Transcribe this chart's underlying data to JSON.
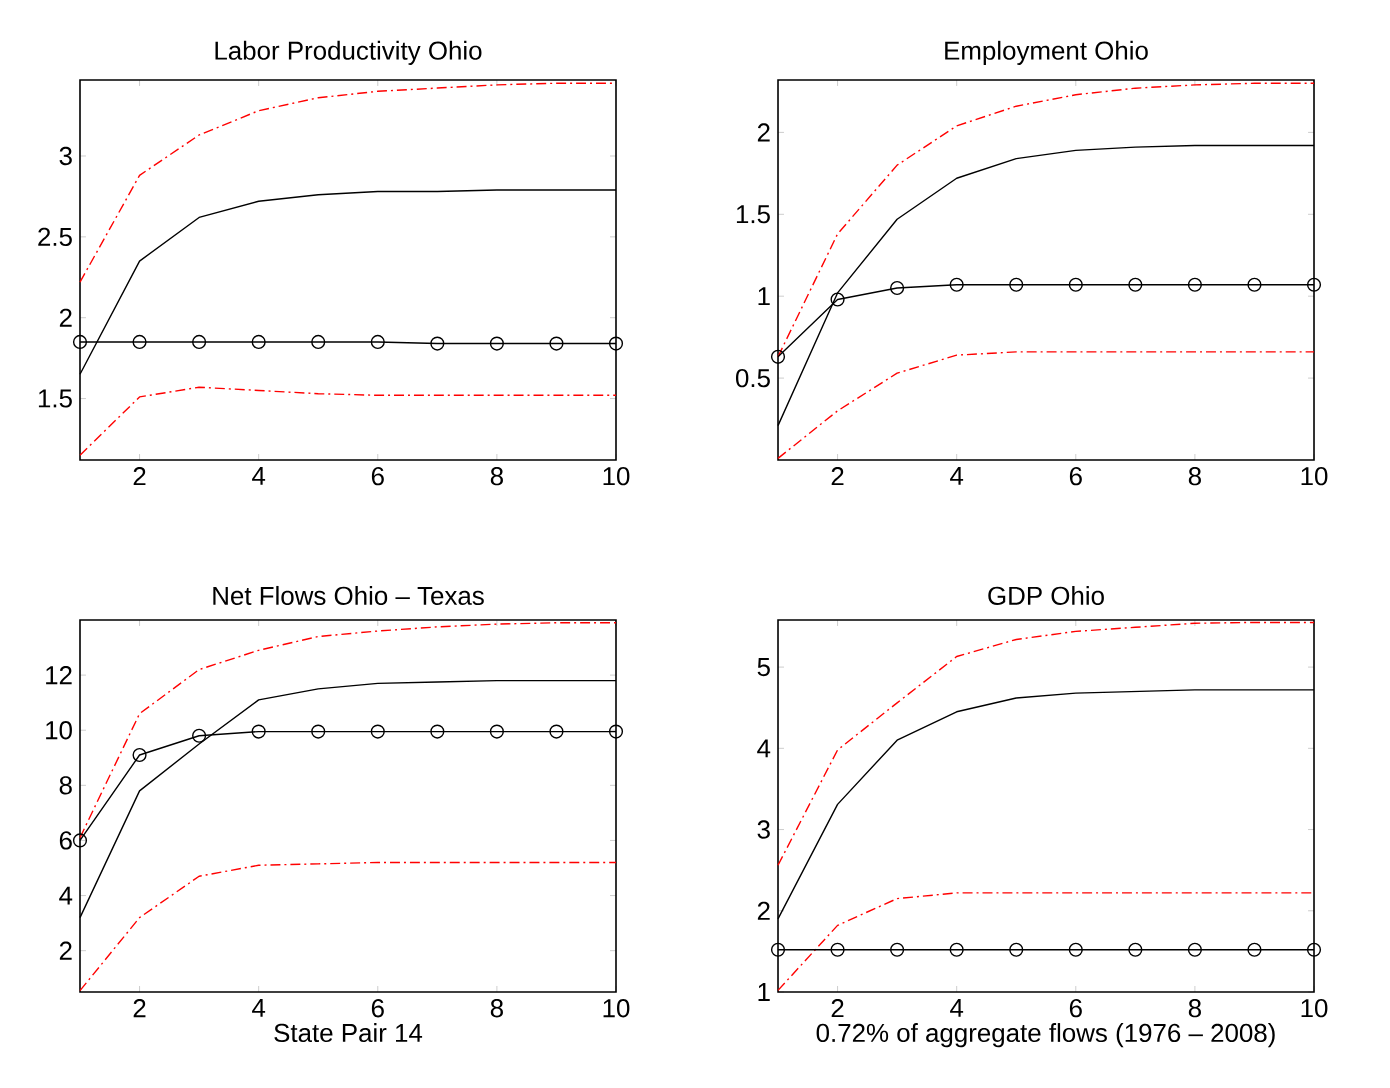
{
  "chart_data": [
    {
      "type": "line",
      "title": "Labor Productivity Ohio",
      "x": [
        1,
        2,
        3,
        4,
        5,
        6,
        7,
        8,
        9,
        10
      ],
      "xlim": [
        1,
        10
      ],
      "xticks": [
        2,
        4,
        6,
        8,
        10
      ],
      "ylim": [
        1.12,
        3.47
      ],
      "yticks": [
        1.5,
        2,
        2.5,
        3
      ],
      "grid": false,
      "legend": false,
      "series": [
        {
          "color": "#ff0000",
          "line_style": "dashed",
          "marker": "none",
          "values": [
            2.22,
            2.88,
            3.13,
            3.28,
            3.36,
            3.4,
            3.42,
            3.44,
            3.45,
            3.45
          ]
        },
        {
          "color": "#ff0000",
          "line_style": "dashed",
          "marker": "none",
          "values": [
            1.15,
            1.51,
            1.57,
            1.55,
            1.53,
            1.52,
            1.52,
            1.52,
            1.52,
            1.52
          ]
        },
        {
          "color": "#000000",
          "line_style": "solid",
          "marker": "none",
          "values": [
            1.65,
            2.35,
            2.62,
            2.72,
            2.76,
            2.78,
            2.78,
            2.79,
            2.79,
            2.79
          ]
        },
        {
          "color": "#000000",
          "line_style": "solid",
          "marker": "circle",
          "values": [
            1.85,
            1.85,
            1.85,
            1.85,
            1.85,
            1.85,
            1.84,
            1.84,
            1.84,
            1.84
          ]
        }
      ]
    },
    {
      "type": "line",
      "title": "Employment Ohio",
      "x": [
        1,
        2,
        3,
        4,
        5,
        6,
        7,
        8,
        9,
        10
      ],
      "xlim": [
        1,
        10
      ],
      "xticks": [
        2,
        4,
        6,
        8,
        10
      ],
      "ylim": [
        0,
        2.32
      ],
      "yticks": [
        0.5,
        1,
        1.5,
        2
      ],
      "grid": false,
      "legend": false,
      "series": [
        {
          "color": "#ff0000",
          "line_style": "dashed",
          "marker": "none",
          "values": [
            0.63,
            1.38,
            1.8,
            2.04,
            2.16,
            2.23,
            2.27,
            2.29,
            2.3,
            2.3
          ]
        },
        {
          "color": "#ff0000",
          "line_style": "dashed",
          "marker": "none",
          "values": [
            0.01,
            0.3,
            0.53,
            0.64,
            0.66,
            0.66,
            0.66,
            0.66,
            0.66,
            0.66
          ]
        },
        {
          "color": "#000000",
          "line_style": "solid",
          "marker": "none",
          "values": [
            0.21,
            1.02,
            1.47,
            1.72,
            1.84,
            1.89,
            1.91,
            1.92,
            1.92,
            1.92
          ]
        },
        {
          "color": "#000000",
          "line_style": "solid",
          "marker": "circle",
          "values": [
            0.63,
            0.98,
            1.05,
            1.07,
            1.07,
            1.07,
            1.07,
            1.07,
            1.07,
            1.07
          ]
        }
      ]
    },
    {
      "type": "line",
      "title": "Net Flows Ohio – Texas",
      "xlabel": "State Pair 14",
      "x": [
        1,
        2,
        3,
        4,
        5,
        6,
        7,
        8,
        9,
        10
      ],
      "xlim": [
        1,
        10
      ],
      "xticks": [
        2,
        4,
        6,
        8,
        10
      ],
      "ylim": [
        0.5,
        14
      ],
      "yticks": [
        2,
        4,
        6,
        8,
        10,
        12
      ],
      "grid": false,
      "legend": false,
      "series": [
        {
          "color": "#ff0000",
          "line_style": "dashed",
          "marker": "none",
          "values": [
            6.1,
            10.6,
            12.2,
            12.9,
            13.4,
            13.6,
            13.75,
            13.85,
            13.9,
            13.9
          ]
        },
        {
          "color": "#ff0000",
          "line_style": "dashed",
          "marker": "none",
          "values": [
            0.55,
            3.2,
            4.7,
            5.1,
            5.15,
            5.2,
            5.2,
            5.2,
            5.2,
            5.2
          ]
        },
        {
          "color": "#000000",
          "line_style": "solid",
          "marker": "none",
          "values": [
            3.2,
            7.8,
            9.5,
            11.1,
            11.5,
            11.7,
            11.75,
            11.8,
            11.8,
            11.8
          ]
        },
        {
          "color": "#000000",
          "line_style": "solid",
          "marker": "circle",
          "values": [
            6.0,
            9.1,
            9.8,
            9.95,
            9.95,
            9.95,
            9.95,
            9.95,
            9.95,
            9.95
          ]
        }
      ]
    },
    {
      "type": "line",
      "title": "GDP Ohio",
      "xlabel": "0.72% of aggregate flows (1976 – 2008)",
      "x": [
        1,
        2,
        3,
        4,
        5,
        6,
        7,
        8,
        9,
        10
      ],
      "xlim": [
        1,
        10
      ],
      "xticks": [
        2,
        4,
        6,
        8,
        10
      ],
      "ylim": [
        1,
        5.58
      ],
      "yticks": [
        1,
        2,
        3,
        4,
        5
      ],
      "grid": false,
      "legend": false,
      "series": [
        {
          "color": "#ff0000",
          "line_style": "dashed",
          "marker": "none",
          "values": [
            2.56,
            3.98,
            4.56,
            5.13,
            5.34,
            5.44,
            5.49,
            5.54,
            5.55,
            5.55
          ]
        },
        {
          "color": "#ff0000",
          "line_style": "dashed",
          "marker": "none",
          "values": [
            1.02,
            1.82,
            2.15,
            2.22,
            2.22,
            2.22,
            2.22,
            2.22,
            2.22,
            2.22
          ]
        },
        {
          "color": "#000000",
          "line_style": "solid",
          "marker": "none",
          "values": [
            1.9,
            3.31,
            4.1,
            4.45,
            4.62,
            4.68,
            4.7,
            4.72,
            4.72,
            4.72
          ]
        },
        {
          "color": "#000000",
          "line_style": "solid",
          "marker": "circle",
          "values": [
            1.52,
            1.52,
            1.52,
            1.52,
            1.52,
            1.52,
            1.52,
            1.52,
            1.52,
            1.52
          ]
        }
      ]
    }
  ]
}
